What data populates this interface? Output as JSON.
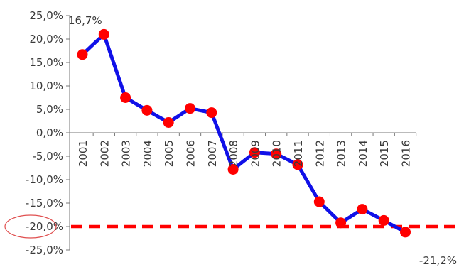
{
  "chart_data": {
    "type": "line",
    "title": "",
    "xlabel": "",
    "ylabel": "",
    "categories": [
      "2001",
      "2002",
      "2003",
      "2004",
      "2005",
      "2006",
      "2007",
      "2008",
      "2009",
      "2010",
      "2011",
      "2012",
      "2013",
      "2014",
      "2015",
      "2016"
    ],
    "series": [
      {
        "values": [
          16.7,
          21.0,
          7.5,
          4.8,
          2.2,
          5.2,
          4.3,
          -7.8,
          -4.2,
          -4.5,
          -6.8,
          -14.7,
          -19.2,
          -16.3,
          -18.7,
          -21.2
        ],
        "line_color": "#1010e8",
        "marker_color": "#ff0000"
      }
    ],
    "ylim": [
      -25,
      25
    ],
    "yticks": [
      25,
      20,
      15,
      10,
      5,
      0,
      -5,
      -10,
      -15,
      -20,
      -25
    ],
    "ytick_labels": [
      "25,0%",
      "20,0%",
      "15,0%",
      "10,0%",
      "5,0%",
      "0,0%",
      "-5,0%",
      "-10,0%",
      "-15,0%",
      "-20,0%",
      "-25,0%"
    ],
    "reference_line": {
      "value": -20,
      "style": "dashed",
      "color": "#ff0000"
    },
    "highlighted_tick": {
      "value": -20,
      "color": "#e05050"
    },
    "data_labels": [
      {
        "category": "2001",
        "text": "16,7%"
      },
      {
        "category": "2016",
        "text": "-21,2%"
      }
    ],
    "grid": false,
    "legend": "none"
  }
}
